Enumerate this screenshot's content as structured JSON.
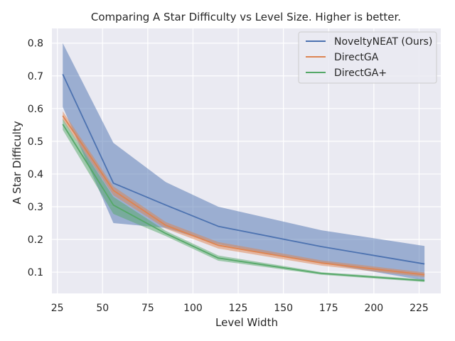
{
  "chart_data": {
    "type": "line",
    "title": "Comparing A Star Difficulty  vs Level Size. Higher is better.",
    "xlabel": "Level Width",
    "ylabel": "A Star Difficulty",
    "xlim": [
      22,
      237
    ],
    "ylim": [
      0.035,
      0.845
    ],
    "xticks": [
      25,
      50,
      75,
      100,
      125,
      150,
      175,
      200,
      225
    ],
    "yticks": [
      0.1,
      0.2,
      0.3,
      0.4,
      0.5,
      0.6,
      0.7,
      0.8
    ],
    "grid": true,
    "legend_position": "top-right",
    "x": [
      28,
      56,
      85,
      114,
      171,
      228
    ],
    "series": [
      {
        "name": "NoveltyNEAT (Ours)",
        "color": "#4c72b0",
        "values": [
          0.705,
          0.372,
          0.305,
          0.24,
          0.178,
          0.125
        ],
        "lower": [
          0.605,
          0.25,
          0.235,
          0.185,
          0.128,
          0.075
        ],
        "upper": [
          0.8,
          0.495,
          0.375,
          0.3,
          0.228,
          0.18
        ]
      },
      {
        "name": "DirectGA",
        "color": "#dd8452",
        "values": [
          0.578,
          0.35,
          0.243,
          0.182,
          0.128,
          0.092
        ],
        "lower": [
          0.565,
          0.335,
          0.233,
          0.172,
          0.12,
          0.085
        ],
        "upper": [
          0.592,
          0.362,
          0.253,
          0.192,
          0.136,
          0.099
        ]
      },
      {
        "name": "DirectGA+",
        "color": "#55a868",
        "values": [
          0.552,
          0.305,
          0.218,
          0.143,
          0.096,
          0.074
        ],
        "lower": [
          0.535,
          0.278,
          0.21,
          0.135,
          0.092,
          0.07
        ],
        "upper": [
          0.568,
          0.33,
          0.226,
          0.151,
          0.1,
          0.078
        ]
      }
    ]
  }
}
